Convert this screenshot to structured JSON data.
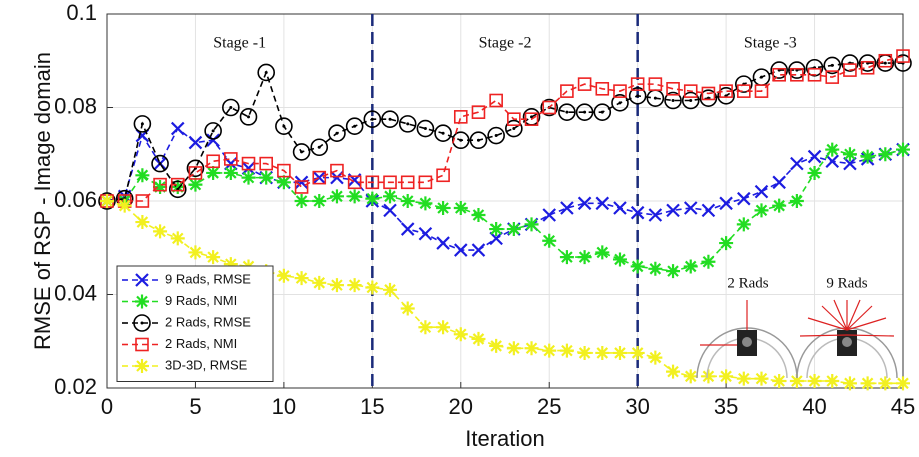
{
  "chart_data": {
    "type": "line",
    "x_label": "Iteration",
    "y_label": "RMSE of RSP - Image domain",
    "x": [
      0,
      1,
      2,
      3,
      4,
      5,
      6,
      7,
      8,
      9,
      10,
      11,
      12,
      13,
      14,
      15,
      16,
      17,
      18,
      19,
      20,
      21,
      22,
      23,
      24,
      25,
      26,
      27,
      28,
      29,
      30,
      31,
      32,
      33,
      34,
      35,
      36,
      37,
      38,
      39,
      40,
      41,
      42,
      43,
      44,
      45
    ],
    "xlim": [
      0,
      45
    ],
    "xticks": [
      0,
      5,
      10,
      15,
      20,
      25,
      30,
      35,
      40,
      45
    ],
    "ylim": [
      0.02,
      0.1
    ],
    "yticks": [
      0.02,
      0.04,
      0.06,
      0.08,
      0.1
    ],
    "grid": true,
    "legend": "lower-left",
    "vlines": [
      15,
      30
    ],
    "annotations": [
      "Stage -1",
      "Stage -2",
      "Stage -3"
    ],
    "inset_labels": [
      "2 Rads",
      "9 Rads"
    ],
    "series": [
      {
        "name": "9 Rads, RMSE",
        "color": "#1c1ce0",
        "marker": "x",
        "values": [
          0.06,
          0.061,
          0.074,
          0.068,
          0.0755,
          0.0725,
          0.073,
          0.068,
          0.067,
          0.065,
          0.064,
          0.064,
          0.065,
          0.065,
          0.0645,
          0.06,
          0.058,
          0.054,
          0.053,
          0.051,
          0.0495,
          0.0495,
          0.052,
          0.054,
          0.055,
          0.057,
          0.0585,
          0.0595,
          0.0595,
          0.0585,
          0.0575,
          0.057,
          0.058,
          0.0585,
          0.058,
          0.0595,
          0.0605,
          0.062,
          0.064,
          0.068,
          0.0695,
          0.0685,
          0.068,
          0.069,
          0.07,
          0.071
        ]
      },
      {
        "name": "9 Rads, NMI",
        "color": "#22dd22",
        "marker": "asterisk",
        "values": [
          0.06,
          0.06,
          0.0655,
          0.063,
          0.063,
          0.0635,
          0.066,
          0.066,
          0.065,
          0.065,
          0.064,
          0.06,
          0.06,
          0.061,
          0.061,
          0.0605,
          0.061,
          0.06,
          0.0595,
          0.0585,
          0.0585,
          0.057,
          0.054,
          0.054,
          0.055,
          0.0515,
          0.048,
          0.048,
          0.049,
          0.0475,
          0.046,
          0.0455,
          0.045,
          0.046,
          0.047,
          0.051,
          0.055,
          0.058,
          0.059,
          0.06,
          0.066,
          0.071,
          0.07,
          0.0695,
          0.07,
          0.071
        ]
      },
      {
        "name": "2 Rads, RMSE",
        "color": "#000000",
        "marker": "circle",
        "values": [
          0.06,
          0.0605,
          0.0765,
          0.068,
          0.0625,
          0.067,
          0.075,
          0.08,
          0.078,
          0.0875,
          0.076,
          0.0705,
          0.0715,
          0.0745,
          0.076,
          0.0775,
          0.0775,
          0.0765,
          0.0755,
          0.0745,
          0.073,
          0.073,
          0.074,
          0.0755,
          0.078,
          0.08,
          0.079,
          0.079,
          0.079,
          0.081,
          0.0825,
          0.082,
          0.0815,
          0.0815,
          0.082,
          0.0825,
          0.085,
          0.0865,
          0.088,
          0.088,
          0.0885,
          0.089,
          0.0895,
          0.0895,
          0.0895,
          0.0895
        ]
      },
      {
        "name": "2 Rads, NMI",
        "color": "#ee2222",
        "marker": "square",
        "values": [
          0.06,
          0.06,
          0.06,
          0.0635,
          0.0635,
          0.066,
          0.0685,
          0.069,
          0.068,
          0.068,
          0.0665,
          0.063,
          0.065,
          0.0665,
          0.064,
          0.064,
          0.064,
          0.064,
          0.064,
          0.0655,
          0.078,
          0.079,
          0.0815,
          0.0775,
          0.0775,
          0.08,
          0.0835,
          0.085,
          0.084,
          0.0835,
          0.085,
          0.085,
          0.084,
          0.0835,
          0.083,
          0.0835,
          0.0835,
          0.0835,
          0.087,
          0.087,
          0.087,
          0.0865,
          0.088,
          0.0885,
          0.09,
          0.091
        ]
      },
      {
        "name": "3D-3D, RMSE",
        "color": "#f2f020",
        "marker": "asterisk",
        "values": [
          0.06,
          0.059,
          0.0555,
          0.0535,
          0.052,
          0.049,
          0.048,
          0.0465,
          0.046,
          0.045,
          0.044,
          0.0435,
          0.0425,
          0.042,
          0.042,
          0.0415,
          0.041,
          0.037,
          0.033,
          0.033,
          0.0315,
          0.0305,
          0.029,
          0.0285,
          0.0285,
          0.028,
          0.028,
          0.0275,
          0.0275,
          0.0275,
          0.0275,
          0.0265,
          0.0235,
          0.0225,
          0.0225,
          0.0225,
          0.022,
          0.022,
          0.0215,
          0.0215,
          0.0215,
          0.0215,
          0.021,
          0.021,
          0.021,
          0.021
        ]
      }
    ]
  }
}
